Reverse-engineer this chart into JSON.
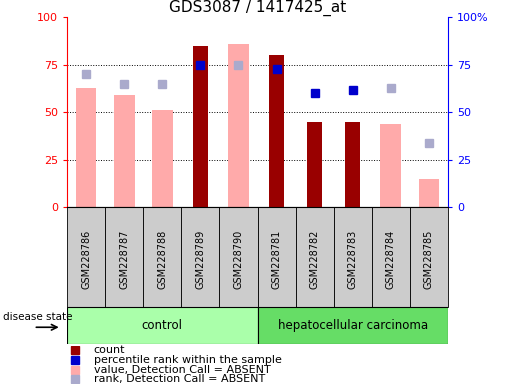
{
  "title": "GDS3087 / 1417425_at",
  "samples": [
    "GSM228786",
    "GSM228787",
    "GSM228788",
    "GSM228789",
    "GSM228790",
    "GSM228781",
    "GSM228782",
    "GSM228783",
    "GSM228784",
    "GSM228785"
  ],
  "count_values": [
    null,
    null,
    null,
    85,
    null,
    80,
    45,
    45,
    null,
    null
  ],
  "percentile_rank_values": [
    null,
    null,
    null,
    75,
    null,
    73,
    60,
    62,
    null,
    null
  ],
  "value_absent_values": [
    63,
    59,
    51,
    null,
    86,
    null,
    null,
    null,
    44,
    15
  ],
  "rank_absent_values": [
    70,
    65,
    65,
    null,
    75,
    null,
    null,
    null,
    63,
    34
  ],
  "count_color": "#990000",
  "percentile_color": "#0000cc",
  "value_absent_color": "#ffaaaa",
  "rank_absent_color": "#aaaacc",
  "control_color": "#aaffaa",
  "carcinoma_color": "#66dd66",
  "ylim": [
    0,
    100
  ],
  "yticks_left": [
    "0",
    "25",
    "50",
    "75",
    "100"
  ],
  "yticks_right": [
    "0",
    "25",
    "50",
    "75",
    "100%"
  ],
  "background_color": "#ffffff",
  "label_area_color": "#cccccc",
  "legend_items": [
    {
      "color": "#990000",
      "label": "count"
    },
    {
      "color": "#0000cc",
      "label": "percentile rank within the sample"
    },
    {
      "color": "#ffaaaa",
      "label": "value, Detection Call = ABSENT"
    },
    {
      "color": "#aaaacc",
      "label": "rank, Detection Call = ABSENT"
    }
  ],
  "disease_state_label": "disease state",
  "control_label": "control",
  "carcinoma_label": "hepatocellular carcinoma"
}
